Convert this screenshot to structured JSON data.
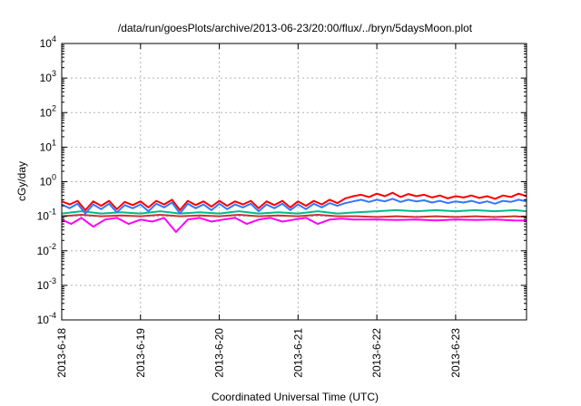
{
  "chart_data": {
    "type": "line",
    "title": "/data/run/goesPlots/archive/2013-06-23/20:00/flux/../bryn/5daysMoon.plot",
    "xlabel": "Coordinated Universal Time (UTC)",
    "ylabel": "cGy/day",
    "x_range_days": [
      0,
      5.9
    ],
    "x_ticks": [
      {
        "day": 0,
        "label": "2013-6-18"
      },
      {
        "day": 1,
        "label": "2013-6-19"
      },
      {
        "day": 2,
        "label": "2013-6-20"
      },
      {
        "day": 3,
        "label": "2013-6-21"
      },
      {
        "day": 4,
        "label": "2013-6-22"
      },
      {
        "day": 5,
        "label": "2013-6-23"
      }
    ],
    "y_scale": "log",
    "ylim": [
      0.0001,
      10000
    ],
    "y_ticks": [
      {
        "value": 10000,
        "base": "10",
        "exp": "4"
      },
      {
        "value": 1000,
        "base": "10",
        "exp": "3"
      },
      {
        "value": 100,
        "base": "10",
        "exp": "2"
      },
      {
        "value": 10,
        "base": "10",
        "exp": "1"
      },
      {
        "value": 1,
        "base": "10",
        "exp": "0"
      },
      {
        "value": 0.1,
        "base": "10",
        "exp": "-1"
      },
      {
        "value": 0.01,
        "base": "10",
        "exp": "-2"
      },
      {
        "value": 0.001,
        "base": "10",
        "exp": "-3"
      },
      {
        "value": 0.0001,
        "base": "10",
        "exp": "-4"
      }
    ],
    "grid": true,
    "series": [
      {
        "color": "#ff00ff",
        "x": [
          0,
          0.12,
          0.25,
          0.4,
          0.55,
          0.7,
          0.85,
          1.0,
          1.15,
          1.3,
          1.45,
          1.6,
          1.75,
          1.9,
          2.05,
          2.2,
          2.35,
          2.5,
          2.65,
          2.8,
          2.95,
          3.1,
          3.25,
          3.4,
          3.55,
          3.7,
          3.85,
          4.0,
          4.25,
          4.5,
          4.75,
          5.0,
          5.25,
          5.5,
          5.75,
          5.9
        ],
        "values": [
          0.08,
          0.06,
          0.09,
          0.05,
          0.08,
          0.09,
          0.06,
          0.08,
          0.07,
          0.09,
          0.035,
          0.08,
          0.09,
          0.07,
          0.08,
          0.09,
          0.06,
          0.08,
          0.09,
          0.07,
          0.08,
          0.09,
          0.06,
          0.08,
          0.085,
          0.08,
          0.08,
          0.08,
          0.078,
          0.08,
          0.076,
          0.08,
          0.078,
          0.08,
          0.076,
          0.075
        ]
      },
      {
        "color": "#cc3333",
        "x": [
          0,
          0.25,
          0.5,
          0.75,
          1.0,
          1.25,
          1.5,
          1.75,
          2.0,
          2.25,
          2.5,
          2.75,
          3.0,
          3.25,
          3.5,
          3.75,
          4.0,
          4.25,
          4.5,
          4.75,
          5.0,
          5.25,
          5.5,
          5.75,
          5.9
        ],
        "values": [
          0.1,
          0.11,
          0.1,
          0.105,
          0.1,
          0.11,
          0.1,
          0.105,
          0.1,
          0.11,
          0.1,
          0.105,
          0.1,
          0.11,
          0.1,
          0.1,
          0.095,
          0.1,
          0.095,
          0.1,
          0.095,
          0.1,
          0.095,
          0.1,
          0.095
        ]
      },
      {
        "color": "#00bb88",
        "x": [
          0,
          0.25,
          0.5,
          0.75,
          1.0,
          1.25,
          1.5,
          1.75,
          2.0,
          2.25,
          2.5,
          2.75,
          3.0,
          3.25,
          3.5,
          3.75,
          4.0,
          4.25,
          4.5,
          4.75,
          5.0,
          5.25,
          5.5,
          5.75,
          5.9
        ],
        "values": [
          0.12,
          0.14,
          0.12,
          0.13,
          0.12,
          0.14,
          0.12,
          0.13,
          0.12,
          0.14,
          0.12,
          0.13,
          0.12,
          0.14,
          0.12,
          0.13,
          0.14,
          0.15,
          0.14,
          0.15,
          0.14,
          0.15,
          0.14,
          0.15,
          0.14
        ]
      },
      {
        "color": "#ff0000",
        "x": [
          0,
          0.1,
          0.2,
          0.3,
          0.4,
          0.5,
          0.6,
          0.7,
          0.8,
          0.9,
          1.0,
          1.1,
          1.2,
          1.3,
          1.4,
          1.5,
          1.6,
          1.7,
          1.8,
          1.9,
          2.0,
          2.1,
          2.2,
          2.3,
          2.4,
          2.5,
          2.6,
          2.7,
          2.8,
          2.9,
          3.0,
          3.1,
          3.2,
          3.3,
          3.4,
          3.5,
          3.6,
          3.7,
          3.8,
          3.9,
          4.0,
          4.1,
          4.2,
          4.3,
          4.4,
          4.5,
          4.6,
          4.7,
          4.8,
          4.9,
          5.0,
          5.1,
          5.2,
          5.3,
          5.4,
          5.5,
          5.6,
          5.7,
          5.8,
          5.9
        ],
        "values": [
          0.27,
          0.22,
          0.28,
          0.15,
          0.27,
          0.2,
          0.28,
          0.16,
          0.26,
          0.21,
          0.27,
          0.18,
          0.28,
          0.22,
          0.3,
          0.15,
          0.28,
          0.21,
          0.27,
          0.19,
          0.28,
          0.2,
          0.27,
          0.22,
          0.28,
          0.17,
          0.27,
          0.21,
          0.28,
          0.18,
          0.27,
          0.2,
          0.28,
          0.22,
          0.3,
          0.24,
          0.33,
          0.38,
          0.42,
          0.36,
          0.45,
          0.38,
          0.48,
          0.36,
          0.44,
          0.38,
          0.42,
          0.35,
          0.4,
          0.33,
          0.38,
          0.35,
          0.4,
          0.34,
          0.38,
          0.32,
          0.4,
          0.36,
          0.45,
          0.38
        ]
      },
      {
        "color": "#3377ff",
        "x": [
          0,
          0.1,
          0.2,
          0.3,
          0.4,
          0.5,
          0.6,
          0.7,
          0.8,
          0.9,
          1.0,
          1.1,
          1.2,
          1.3,
          1.4,
          1.5,
          1.6,
          1.7,
          1.8,
          1.9,
          2.0,
          2.1,
          2.2,
          2.3,
          2.4,
          2.5,
          2.6,
          2.7,
          2.8,
          2.9,
          3.0,
          3.1,
          3.2,
          3.3,
          3.4,
          3.5,
          3.6,
          3.7,
          3.8,
          3.9,
          4.0,
          4.1,
          4.2,
          4.3,
          4.4,
          4.5,
          4.6,
          4.7,
          4.8,
          4.9,
          5.0,
          5.1,
          5.2,
          5.3,
          5.4,
          5.5,
          5.6,
          5.7,
          5.8,
          5.9
        ],
        "values": [
          0.22,
          0.17,
          0.23,
          0.12,
          0.22,
          0.16,
          0.23,
          0.13,
          0.21,
          0.17,
          0.22,
          0.14,
          0.23,
          0.18,
          0.25,
          0.12,
          0.23,
          0.17,
          0.22,
          0.15,
          0.23,
          0.16,
          0.22,
          0.18,
          0.23,
          0.14,
          0.22,
          0.17,
          0.23,
          0.15,
          0.22,
          0.16,
          0.23,
          0.18,
          0.24,
          0.2,
          0.24,
          0.27,
          0.3,
          0.26,
          0.3,
          0.27,
          0.32,
          0.26,
          0.3,
          0.27,
          0.29,
          0.25,
          0.28,
          0.24,
          0.27,
          0.25,
          0.28,
          0.24,
          0.27,
          0.23,
          0.28,
          0.26,
          0.3,
          0.27
        ]
      }
    ]
  }
}
